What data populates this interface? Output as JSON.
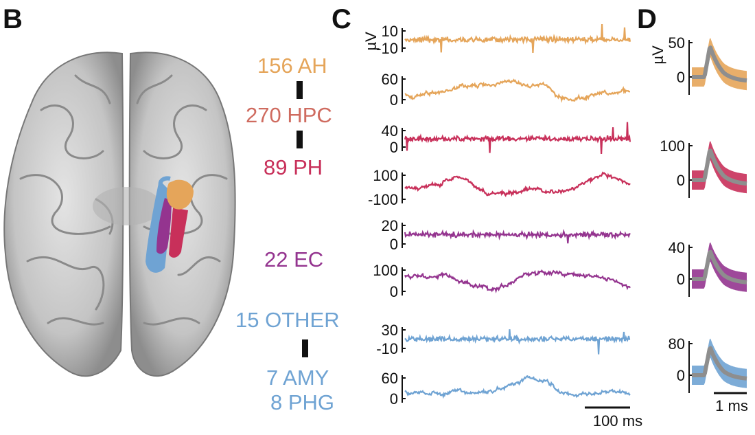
{
  "panels": {
    "b": "B",
    "c": "C",
    "d": "D"
  },
  "regions": [
    {
      "count_label": "156 AH",
      "color": "#E5A55A"
    },
    {
      "count_label": "270 HPC",
      "color": "#CF6B5F"
    },
    {
      "count_label": "89 PH",
      "color": "#C8305A"
    },
    {
      "count_label": "22 EC",
      "color": "#94348F"
    },
    {
      "count_label": "15 OTHER",
      "color": "#6FA3D3"
    },
    {
      "count_label": "7 AMY",
      "color": "#6FA3D3"
    },
    {
      "count_label": "8 PHG",
      "color": "#6FA3D3"
    }
  ],
  "chart_data": [
    {
      "type": "line",
      "panel": "C",
      "ylabel": "µV",
      "series": [
        {
          "region": "AH",
          "signal": "high-pass",
          "yticks": [
            10,
            -10
          ],
          "color": "#E5A55A"
        },
        {
          "region": "AH",
          "signal": "raw",
          "yticks": [
            60,
            0
          ],
          "color": "#E5A55A"
        },
        {
          "region": "PH",
          "signal": "high-pass",
          "yticks": [
            40,
            0
          ],
          "color": "#C8305A"
        },
        {
          "region": "PH",
          "signal": "raw",
          "yticks": [
            100,
            -100
          ],
          "color": "#C8305A"
        },
        {
          "region": "EC",
          "signal": "high-pass",
          "yticks": [
            20,
            0
          ],
          "color": "#94348F"
        },
        {
          "region": "EC",
          "signal": "raw",
          "yticks": [
            100,
            0
          ],
          "color": "#94348F"
        },
        {
          "region": "OTHER",
          "signal": "high-pass",
          "yticks": [
            30,
            -10
          ],
          "color": "#6FA3D3"
        },
        {
          "region": "OTHER",
          "signal": "raw",
          "yticks": [
            60,
            0
          ],
          "color": "#6FA3D3"
        }
      ],
      "scalebar": {
        "label": "100 ms",
        "value_ms": 100
      }
    },
    {
      "type": "line",
      "panel": "D",
      "ylabel": "µV",
      "series": [
        {
          "region": "AH",
          "yticks": [
            50,
            0
          ],
          "color": "#E5A55A",
          "mean_color": "#8E8E8E"
        },
        {
          "region": "PH",
          "yticks": [
            100,
            0
          ],
          "color": "#C8305A",
          "mean_color": "#8E8E8E"
        },
        {
          "region": "EC",
          "yticks": [
            40,
            0
          ],
          "color": "#94348F",
          "mean_color": "#8E8E8E"
        },
        {
          "region": "OTHER",
          "yticks": [
            80,
            0
          ],
          "color": "#6FA3D3",
          "mean_color": "#8E8E8E"
        }
      ],
      "scalebar": {
        "label": "1 ms",
        "value_ms": 1
      }
    }
  ]
}
